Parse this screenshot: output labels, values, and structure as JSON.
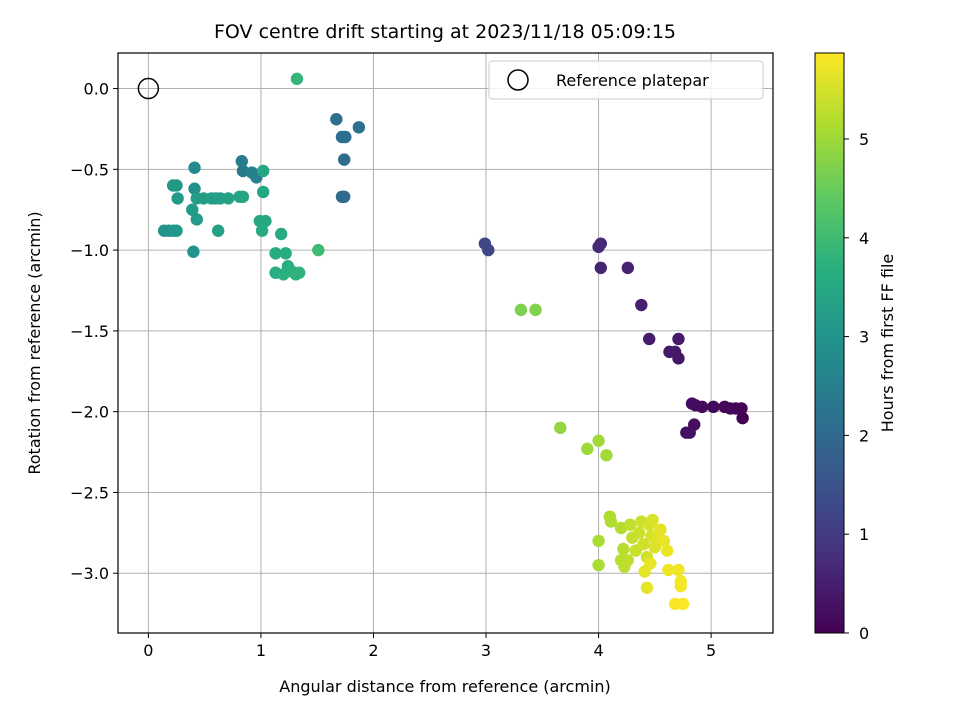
{
  "chart_data": {
    "type": "scatter",
    "title": "FOV centre drift starting at 2023/11/18 05:09:15",
    "xlabel": "Angular distance from reference (arcmin)",
    "ylabel": "Rotation from reference (arcmin)",
    "xlim": [
      -0.27,
      5.55
    ],
    "ylim": [
      -3.37,
      0.22
    ],
    "xticks": [
      0,
      1,
      2,
      3,
      4,
      5
    ],
    "xtick_labels": [
      "0",
      "1",
      "2",
      "3",
      "4",
      "5"
    ],
    "yticks": [
      0.0,
      -0.5,
      -1.0,
      -1.5,
      -2.0,
      -2.5,
      -3.0
    ],
    "ytick_labels": [
      "0.0",
      "−0.5",
      "−1.0",
      "−1.5",
      "−2.0",
      "−2.5",
      "−3.0"
    ],
    "grid": true,
    "legend": {
      "placement": "top-right",
      "entries": [
        "Reference platepar"
      ]
    },
    "reference_point": {
      "x": 0,
      "y": 0,
      "label": "Reference platepar",
      "marker": "open-circle"
    },
    "colormap": "viridis",
    "colorbar": {
      "label": "Hours from first FF file",
      "range": [
        0,
        5.87
      ],
      "ticks": [
        0,
        1,
        2,
        3,
        4,
        5
      ],
      "tick_labels": [
        "0",
        "1",
        "2",
        "3",
        "4",
        "5"
      ]
    },
    "points": [
      {
        "x": 5.28,
        "y": -2.04,
        "c": 0.0
      },
      {
        "x": 5.27,
        "y": -1.98,
        "c": 0.03
      },
      {
        "x": 5.22,
        "y": -1.98,
        "c": 0.05
      },
      {
        "x": 5.17,
        "y": -1.98,
        "c": 0.08
      },
      {
        "x": 5.12,
        "y": -1.97,
        "c": 0.1
      },
      {
        "x": 5.02,
        "y": -1.97,
        "c": 0.13
      },
      {
        "x": 4.92,
        "y": -1.97,
        "c": 0.15
      },
      {
        "x": 4.86,
        "y": -1.96,
        "c": 0.17
      },
      {
        "x": 4.83,
        "y": -1.95,
        "c": 0.2
      },
      {
        "x": 4.85,
        "y": -2.08,
        "c": 0.22
      },
      {
        "x": 4.81,
        "y": -2.13,
        "c": 0.25
      },
      {
        "x": 4.78,
        "y": -2.13,
        "c": 0.27
      },
      {
        "x": 4.71,
        "y": -1.67,
        "c": 0.35
      },
      {
        "x": 4.68,
        "y": -1.63,
        "c": 0.38
      },
      {
        "x": 4.63,
        "y": -1.63,
        "c": 0.4
      },
      {
        "x": 4.71,
        "y": -1.55,
        "c": 0.42
      },
      {
        "x": 4.45,
        "y": -1.55,
        "c": 0.45
      },
      {
        "x": 4.38,
        "y": -1.34,
        "c": 0.5
      },
      {
        "x": 4.26,
        "y": -1.11,
        "c": 0.55
      },
      {
        "x": 4.02,
        "y": -1.11,
        "c": 0.6
      },
      {
        "x": 4.02,
        "y": -0.96,
        "c": 0.65
      },
      {
        "x": 4.0,
        "y": -0.98,
        "c": 0.7
      },
      {
        "x": 3.02,
        "y": -1.0,
        "c": 1.2
      },
      {
        "x": 2.99,
        "y": -0.96,
        "c": 1.25
      },
      {
        "x": 1.74,
        "y": -0.67,
        "c": 2.0
      },
      {
        "x": 1.72,
        "y": -0.67,
        "c": 2.02
      },
      {
        "x": 1.74,
        "y": -0.44,
        "c": 2.05
      },
      {
        "x": 1.72,
        "y": -0.3,
        "c": 2.08
      },
      {
        "x": 1.75,
        "y": -0.3,
        "c": 2.1
      },
      {
        "x": 1.67,
        "y": -0.19,
        "c": 2.13
      },
      {
        "x": 1.87,
        "y": -0.24,
        "c": 2.15
      },
      {
        "x": 0.84,
        "y": -0.51,
        "c": 2.4
      },
      {
        "x": 0.83,
        "y": -0.45,
        "c": 2.45
      },
      {
        "x": 0.96,
        "y": -0.55,
        "c": 2.5
      },
      {
        "x": 0.92,
        "y": -0.52,
        "c": 2.55
      },
      {
        "x": 0.41,
        "y": -0.49,
        "c": 2.8
      },
      {
        "x": 0.41,
        "y": -0.62,
        "c": 2.9
      },
      {
        "x": 0.4,
        "y": -1.01,
        "c": 2.95
      },
      {
        "x": 0.14,
        "y": -0.88,
        "c": 3.0
      },
      {
        "x": 0.18,
        "y": -0.88,
        "c": 3.02
      },
      {
        "x": 0.22,
        "y": -0.88,
        "c": 3.05
      },
      {
        "x": 0.25,
        "y": -0.88,
        "c": 3.08
      },
      {
        "x": 0.22,
        "y": -0.6,
        "c": 3.1
      },
      {
        "x": 0.25,
        "y": -0.6,
        "c": 3.12
      },
      {
        "x": 0.26,
        "y": -0.68,
        "c": 3.15
      },
      {
        "x": 0.39,
        "y": -0.75,
        "c": 3.17
      },
      {
        "x": 0.43,
        "y": -0.81,
        "c": 3.2
      },
      {
        "x": 0.43,
        "y": -0.68,
        "c": 3.22
      },
      {
        "x": 0.49,
        "y": -0.68,
        "c": 3.25
      },
      {
        "x": 0.56,
        "y": -0.68,
        "c": 3.27
      },
      {
        "x": 0.6,
        "y": -0.68,
        "c": 3.3
      },
      {
        "x": 0.64,
        "y": -0.68,
        "c": 3.32
      },
      {
        "x": 0.71,
        "y": -0.68,
        "c": 3.35
      },
      {
        "x": 0.62,
        "y": -0.88,
        "c": 3.37
      },
      {
        "x": 0.81,
        "y": -0.67,
        "c": 3.4
      },
      {
        "x": 0.84,
        "y": -0.67,
        "c": 3.42
      },
      {
        "x": 1.02,
        "y": -0.51,
        "c": 3.45
      },
      {
        "x": 1.02,
        "y": -0.64,
        "c": 3.47
      },
      {
        "x": 0.99,
        "y": -0.82,
        "c": 3.5
      },
      {
        "x": 1.04,
        "y": -0.82,
        "c": 3.52
      },
      {
        "x": 1.01,
        "y": -0.88,
        "c": 3.55
      },
      {
        "x": 1.18,
        "y": -0.9,
        "c": 3.57
      },
      {
        "x": 1.13,
        "y": -1.02,
        "c": 3.6
      },
      {
        "x": 1.13,
        "y": -1.14,
        "c": 3.62
      },
      {
        "x": 1.22,
        "y": -1.02,
        "c": 3.65
      },
      {
        "x": 1.24,
        "y": -1.1,
        "c": 3.67
      },
      {
        "x": 1.2,
        "y": -1.15,
        "c": 3.7
      },
      {
        "x": 1.27,
        "y": -1.13,
        "c": 3.72
      },
      {
        "x": 1.31,
        "y": -1.15,
        "c": 3.75
      },
      {
        "x": 1.34,
        "y": -1.14,
        "c": 3.77
      },
      {
        "x": 1.32,
        "y": 0.06,
        "c": 3.85
      },
      {
        "x": 1.51,
        "y": -1.0,
        "c": 4.0
      },
      {
        "x": 3.31,
        "y": -1.37,
        "c": 4.7
      },
      {
        "x": 3.44,
        "y": -1.37,
        "c": 4.72
      },
      {
        "x": 3.66,
        "y": -2.1,
        "c": 4.9
      },
      {
        "x": 3.9,
        "y": -2.23,
        "c": 5.0
      },
      {
        "x": 4.0,
        "y": -2.18,
        "c": 5.02
      },
      {
        "x": 4.07,
        "y": -2.27,
        "c": 5.05
      },
      {
        "x": 4.0,
        "y": -2.8,
        "c": 5.1
      },
      {
        "x": 4.0,
        "y": -2.95,
        "c": 5.12
      },
      {
        "x": 4.1,
        "y": -2.65,
        "c": 5.15
      },
      {
        "x": 4.11,
        "y": -2.68,
        "c": 5.17
      },
      {
        "x": 4.2,
        "y": -2.72,
        "c": 5.2
      },
      {
        "x": 4.22,
        "y": -2.85,
        "c": 5.22
      },
      {
        "x": 4.2,
        "y": -2.92,
        "c": 5.25
      },
      {
        "x": 4.23,
        "y": -2.96,
        "c": 5.27
      },
      {
        "x": 4.26,
        "y": -2.92,
        "c": 5.3
      },
      {
        "x": 4.28,
        "y": -2.7,
        "c": 5.32
      },
      {
        "x": 4.3,
        "y": -2.78,
        "c": 5.35
      },
      {
        "x": 4.33,
        "y": -2.86,
        "c": 5.37
      },
      {
        "x": 4.36,
        "y": -2.75,
        "c": 5.4
      },
      {
        "x": 4.38,
        "y": -2.68,
        "c": 5.42
      },
      {
        "x": 4.4,
        "y": -2.82,
        "c": 5.45
      },
      {
        "x": 4.43,
        "y": -2.9,
        "c": 5.47
      },
      {
        "x": 4.45,
        "y": -2.7,
        "c": 5.5
      },
      {
        "x": 4.47,
        "y": -2.77,
        "c": 5.52
      },
      {
        "x": 4.48,
        "y": -2.67,
        "c": 5.55
      },
      {
        "x": 4.5,
        "y": -2.84,
        "c": 5.57
      },
      {
        "x": 4.52,
        "y": -2.78,
        "c": 5.6
      },
      {
        "x": 4.55,
        "y": -2.73,
        "c": 5.62
      },
      {
        "x": 4.41,
        "y": -2.99,
        "c": 5.64
      },
      {
        "x": 4.43,
        "y": -3.09,
        "c": 5.66
      },
      {
        "x": 4.46,
        "y": -2.94,
        "c": 5.68
      },
      {
        "x": 4.58,
        "y": -2.8,
        "c": 5.7
      },
      {
        "x": 4.61,
        "y": -2.86,
        "c": 5.72
      },
      {
        "x": 4.62,
        "y": -2.98,
        "c": 5.74
      },
      {
        "x": 4.71,
        "y": -2.98,
        "c": 5.76
      },
      {
        "x": 4.73,
        "y": -3.05,
        "c": 5.78
      },
      {
        "x": 4.73,
        "y": -3.08,
        "c": 5.8
      },
      {
        "x": 4.68,
        "y": -3.19,
        "c": 5.83
      },
      {
        "x": 4.75,
        "y": -3.19,
        "c": 5.86
      }
    ]
  }
}
